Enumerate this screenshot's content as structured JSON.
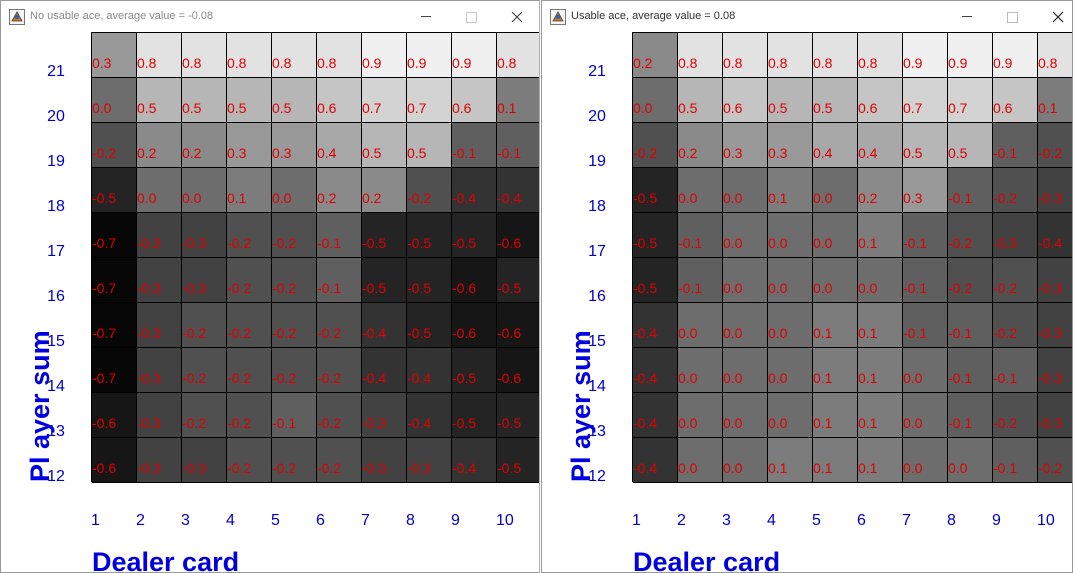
{
  "panels": [
    {
      "title": "No usable ace, average value = -0.08",
      "axis": {
        "x_title": "Dealer card",
        "y_title": "Pl ayer  sum"
      },
      "dealer_cards": [
        "1",
        "2",
        "3",
        "4",
        "5",
        "6",
        "7",
        "8",
        "9",
        "10"
      ],
      "player_sums": [
        "21",
        "20",
        "19",
        "18",
        "17",
        "16",
        "15",
        "14",
        "13",
        "12"
      ],
      "values": [
        [
          "0.3",
          "0.8",
          "0.8",
          "0.8",
          "0.8",
          "0.8",
          "0.9",
          "0.9",
          "0.9",
          "0.8"
        ],
        [
          "0.0",
          "0.5",
          "0.5",
          "0.5",
          "0.5",
          "0.6",
          "0.7",
          "0.7",
          "0.6",
          "0.1"
        ],
        [
          "-0.2",
          "0.2",
          "0.2",
          "0.3",
          "0.3",
          "0.4",
          "0.5",
          "0.5",
          "-0.1",
          "-0.1"
        ],
        [
          "-0.5",
          "0.0",
          "0.0",
          "0.1",
          "0.0",
          "0.2",
          "0.2",
          "-0.2",
          "-0.4",
          "-0.4"
        ],
        [
          "-0.7",
          "-0.3",
          "-0.3",
          "-0.2",
          "-0.2",
          "-0.1",
          "-0.5",
          "-0.5",
          "-0.5",
          "-0.6"
        ],
        [
          "-0.7",
          "-0.3",
          "-0.3",
          "-0.2",
          "-0.2",
          "-0.1",
          "-0.5",
          "-0.5",
          "-0.6",
          "-0.5"
        ],
        [
          "-0.7",
          "-0.3",
          "-0.2",
          "-0.2",
          "-0.2",
          "-0.2",
          "-0.4",
          "-0.5",
          "-0.6",
          "-0.6"
        ],
        [
          "-0.7",
          "-0.3",
          "-0.2",
          "-0.2",
          "-0.2",
          "-0.2",
          "-0.4",
          "-0.4",
          "-0.5",
          "-0.6"
        ],
        [
          "-0.6",
          "-0.3",
          "-0.2",
          "-0.2",
          "-0.1",
          "-0.2",
          "-0.3",
          "-0.4",
          "-0.5",
          "-0.5"
        ],
        [
          "-0.6",
          "-0.3",
          "-0.3",
          "-0.2",
          "-0.2",
          "-0.2",
          "-0.3",
          "-0.3",
          "-0.4",
          "-0.5"
        ]
      ]
    },
    {
      "title": "Usable ace, average value = 0.08",
      "axis": {
        "x_title": "Dealer card",
        "y_title": "Pl ayer  sum"
      },
      "dealer_cards": [
        "1",
        "2",
        "3",
        "4",
        "5",
        "6",
        "7",
        "8",
        "9",
        "10"
      ],
      "player_sums": [
        "21",
        "20",
        "19",
        "18",
        "17",
        "16",
        "15",
        "14",
        "13",
        "12"
      ],
      "values": [
        [
          "0.2",
          "0.8",
          "0.8",
          "0.8",
          "0.8",
          "0.8",
          "0.9",
          "0.9",
          "0.9",
          "0.8"
        ],
        [
          "0.0",
          "0.5",
          "0.6",
          "0.5",
          "0.5",
          "0.6",
          "0.7",
          "0.7",
          "0.6",
          "0.1"
        ],
        [
          "-0.2",
          "0.2",
          "0.3",
          "0.3",
          "0.4",
          "0.4",
          "0.5",
          "0.5",
          "-0.1",
          "-0.2"
        ],
        [
          "-0.5",
          "0.0",
          "0.0",
          "0.1",
          "0.0",
          "0.2",
          "0.3",
          "-0.1",
          "-0.2",
          "-0.3"
        ],
        [
          "-0.5",
          "-0.1",
          "0.0",
          "0.0",
          "0.0",
          "0.1",
          "-0.1",
          "-0.2",
          "-0.3",
          "-0.4"
        ],
        [
          "-0.5",
          "-0.1",
          "0.0",
          "0.0",
          "0.0",
          "0.0",
          "-0.1",
          "-0.2",
          "-0.2",
          "-0.3"
        ],
        [
          "-0.4",
          "0.0",
          "0.0",
          "0.0",
          "0.1",
          "0.1",
          "-0.1",
          "-0.1",
          "-0.2",
          "-0.3"
        ],
        [
          "-0.4",
          "0.0",
          "0.0",
          "0.0",
          "0.1",
          "0.1",
          "0.0",
          "-0.1",
          "-0.1",
          "-0.3"
        ],
        [
          "-0.4",
          "0.0",
          "0.0",
          "0.0",
          "0.1",
          "0.1",
          "0.0",
          "-0.1",
          "-0.2",
          "-0.3"
        ],
        [
          "-0.4",
          "0.0",
          "0.0",
          "0.1",
          "0.1",
          "0.1",
          "0.0",
          "0.0",
          "-0.1",
          "-0.2"
        ]
      ]
    }
  ],
  "colors": {
    "value_text": "#e00000",
    "axis_text": "#0000c8",
    "axis_title": "#0000e0",
    "grid_line": "#000000"
  },
  "icons": {
    "app": "java-app-icon",
    "minimize": "minimize-icon",
    "maximize": "maximize-icon",
    "close": "close-icon"
  }
}
